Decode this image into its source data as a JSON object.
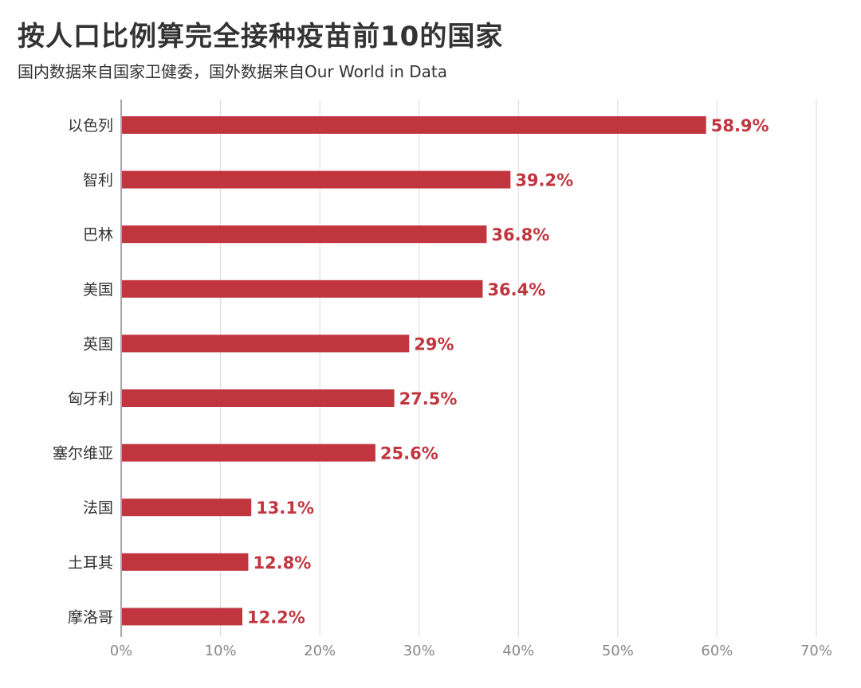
{
  "header": {
    "title": "按人口比例算完全接种疫苗前10的国家",
    "subtitle": "国内数据来自国家卫健委，国外数据来自Our World in Data"
  },
  "colors": {
    "bar": "#c1353f",
    "label": "#c1353f",
    "grid": "#d9d9d9",
    "axis": "#888888"
  },
  "chart_data": {
    "type": "bar",
    "orientation": "horizontal",
    "title": "按人口比例算完全接种疫苗前10的国家",
    "subtitle": "国内数据来自国家卫健委，国外数据来自Our World in Data",
    "categories": [
      "以色列",
      "智利",
      "巴林",
      "美国",
      "英国",
      "匈牙利",
      "塞尔维亚",
      "法国",
      "土耳其",
      "摩洛哥"
    ],
    "values": [
      58.9,
      39.2,
      36.8,
      36.4,
      29,
      27.5,
      25.6,
      13.1,
      12.8,
      12.2
    ],
    "value_labels": [
      "58.9%",
      "39.2%",
      "36.8%",
      "36.4%",
      "29%",
      "27.5%",
      "25.6%",
      "13.1%",
      "12.8%",
      "12.2%"
    ],
    "xlim": [
      0,
      70
    ],
    "xticks": [
      0,
      10,
      20,
      30,
      40,
      50,
      60,
      70
    ],
    "xtick_labels": [
      "0%",
      "10%",
      "20%",
      "30%",
      "40%",
      "50%",
      "60%",
      "70%"
    ],
    "xlabel": "",
    "ylabel": "",
    "grid": "vertical",
    "legend": "none"
  }
}
